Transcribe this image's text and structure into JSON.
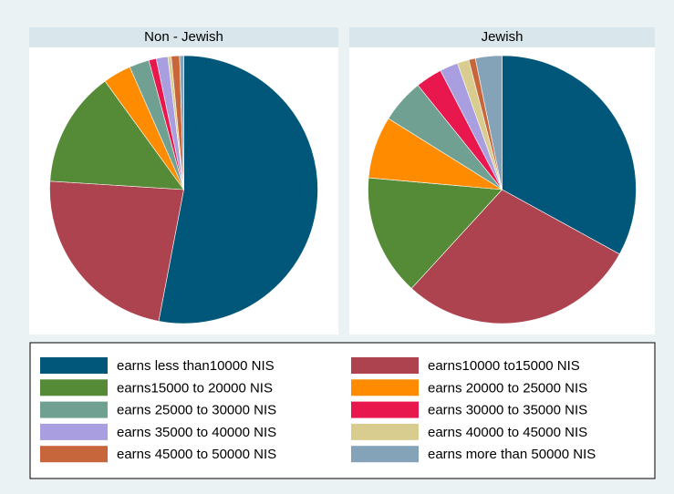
{
  "chart_data": [
    {
      "type": "pie",
      "title": "Non - Jewish",
      "values": [
        53,
        23,
        14,
        3.4,
        2.4,
        0.9,
        1.4,
        0.4,
        1,
        0.5
      ]
    },
    {
      "type": "pie",
      "title": "Jewish",
      "values": [
        33,
        28.8,
        14.6,
        7.5,
        5.3,
        3.2,
        2.2,
        1.4,
        0.8,
        3.2
      ]
    }
  ],
  "legend": {
    "labels": [
      "earns less than10000 NIS",
      "earns10000 to15000 NIS",
      "earns15000 to 20000 NIS",
      "earns 20000 to 25000 NIS",
      "earns 25000 to 30000 NIS",
      "earns 30000 to 35000 NIS",
      "earns 35000 to 40000 NIS",
      "earns 40000 to 45000 NIS",
      "earns 45000 to 50000 NIS",
      "earns more than 50000 NIS"
    ],
    "colors": [
      "#00577a",
      "#ae4350",
      "#558b37",
      "#ff8c00",
      "#70a092",
      "#e8174d",
      "#a99fe0",
      "#d8cc8e",
      "#c8663b",
      "#84a3b9"
    ]
  }
}
